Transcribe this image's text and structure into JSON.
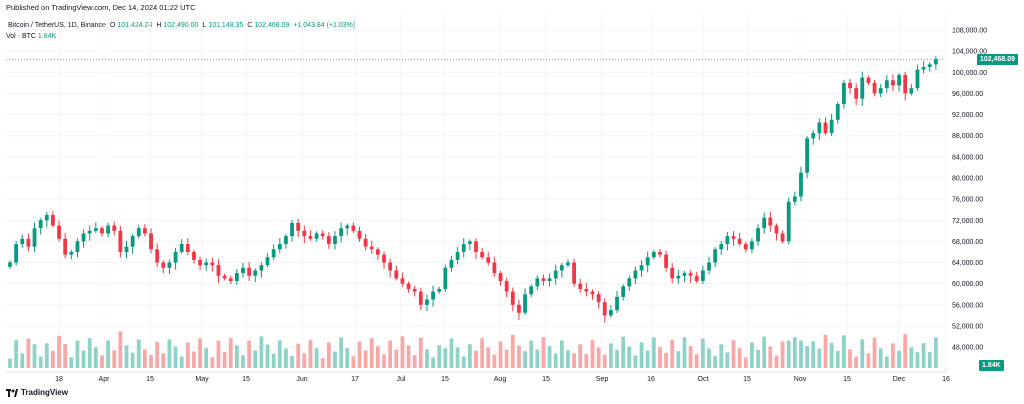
{
  "header": {
    "published": "Published on TradingView.com, Dec 14, 2024 01:22 UTC"
  },
  "legend": {
    "symbol": "Bitcoin / TetherUS, 1D, Binance",
    "o_label": "O",
    "o_value": "101,424.24",
    "h_label": "H",
    "h_value": "102,490.00",
    "l_label": "L",
    "l_value": "101,148.35",
    "c_label": "C",
    "c_value": "102,468.09",
    "change": "+1,043.84 (+1.03%)",
    "vol_label": "Vol · BTC",
    "vol_value": "1.84K"
  },
  "footer": {
    "brand": "TradingView"
  },
  "colors": {
    "up": "#089981",
    "down": "#f23645",
    "up_vol": "#8fd3c8",
    "down_vol": "#f7a9a7",
    "grid": "#f0f3fa"
  },
  "chart_data": {
    "type": "candlestick",
    "interval": "1D",
    "ylim": [
      52000,
      110000
    ],
    "y_ticks": [
      "108,000.00",
      "104,000.00",
      "100,000.00",
      "96,000.00",
      "92,000.00",
      "88,000.00",
      "84,000.00",
      "80,000.00",
      "76,000.00",
      "72,000.00",
      "68,000.00",
      "64,000.00",
      "60,000.00",
      "56,000.00",
      "52,000.00",
      "48,000.00"
    ],
    "x_ticks": [
      "18",
      "Apr",
      "15",
      "May",
      "15",
      "Jun",
      "17",
      "Jul",
      "15",
      "Aug",
      "15",
      "Sep",
      "16",
      "Oct",
      "15",
      "Nov",
      "15",
      "Dec",
      "16"
    ],
    "last_price": "102,468.09",
    "last_volume": "1.84K",
    "close_series": [
      64000,
      67500,
      68500,
      67000,
      70500,
      72000,
      73000,
      71000,
      68500,
      65500,
      66000,
      68000,
      69500,
      70000,
      70500,
      69500,
      71000,
      70000,
      66000,
      67000,
      69000,
      70500,
      69500,
      66500,
      64000,
      63000,
      64000,
      66000,
      67500,
      66000,
      64500,
      63500,
      64000,
      63500,
      61500,
      61000,
      60500,
      62000,
      63000,
      61500,
      62500,
      63500,
      65000,
      66500,
      67500,
      69000,
      71500,
      70000,
      69000,
      68500,
      69500,
      69000,
      67500,
      69000,
      70500,
      71000,
      70000,
      68500,
      67000,
      66500,
      65500,
      64000,
      62500,
      61000,
      60000,
      59000,
      58500,
      56000,
      57000,
      58500,
      59000,
      63000,
      64500,
      66000,
      67500,
      68000,
      66000,
      65000,
      64000,
      62000,
      60500,
      58500,
      56000,
      54500,
      58000,
      59500,
      61000,
      60500,
      61000,
      62500,
      63500,
      64000,
      60000,
      59000,
      58500,
      58000,
      56500,
      54000,
      55000,
      57500,
      59500,
      61000,
      62500,
      63500,
      65000,
      66000,
      65500,
      63000,
      61000,
      61500,
      62000,
      61500,
      60500,
      62500,
      64000,
      66500,
      67500,
      69000,
      68500,
      67500,
      66500,
      68000,
      70500,
      72500,
      71000,
      69500,
      68000,
      75500,
      76500,
      81000,
      87500,
      88500,
      90500,
      88500,
      91000,
      94000,
      98000,
      97000,
      95000,
      99000,
      98000,
      96000,
      97000,
      98500,
      97500,
      99500,
      96000,
      97000,
      100500,
      101000,
      101500,
      102468
    ]
  }
}
